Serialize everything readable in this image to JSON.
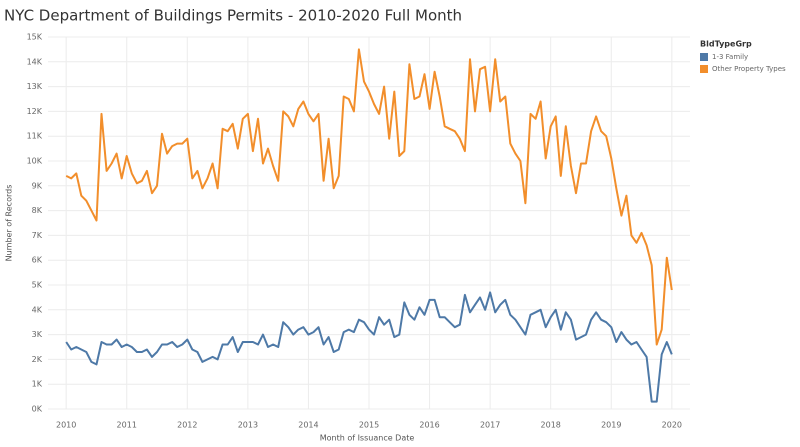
{
  "chart_data": {
    "type": "line",
    "title": "NYC Department of Buildings Permits - 2010-2020 Full Month",
    "x_label": "Month of Issuance Date",
    "y_label": "Number of Records",
    "legend_title": "BldTypeGrp",
    "legend": "right",
    "grid": true,
    "xlim": [
      2009.7,
      2020.3
    ],
    "xticks": [
      2010,
      2011,
      2012,
      2013,
      2014,
      2015,
      2016,
      2017,
      2018,
      2019,
      2020
    ],
    "ylim": [
      0,
      15000
    ],
    "yticks": [
      {
        "value": 0,
        "label": "0K"
      },
      {
        "value": 1000,
        "label": "1K"
      },
      {
        "value": 2000,
        "label": "2K"
      },
      {
        "value": 3000,
        "label": "3K"
      },
      {
        "value": 4000,
        "label": "4K"
      },
      {
        "value": 5000,
        "label": "5K"
      },
      {
        "value": 6000,
        "label": "6K"
      },
      {
        "value": 7000,
        "label": "7K"
      },
      {
        "value": 8000,
        "label": "8K"
      },
      {
        "value": 9000,
        "label": "9K"
      },
      {
        "value": 10000,
        "label": "10K"
      },
      {
        "value": 11000,
        "label": "11K"
      },
      {
        "value": 12000,
        "label": "12K"
      },
      {
        "value": 13000,
        "label": "13K"
      },
      {
        "value": 14000,
        "label": "14K"
      },
      {
        "value": 15000,
        "label": "15K"
      }
    ],
    "x": [
      2010,
      2010.083,
      2010.167,
      2010.25,
      2010.333,
      2010.417,
      2010.5,
      2010.583,
      2010.667,
      2010.75,
      2010.833,
      2010.917,
      2011,
      2011.083,
      2011.167,
      2011.25,
      2011.333,
      2011.417,
      2011.5,
      2011.583,
      2011.667,
      2011.75,
      2011.833,
      2011.917,
      2012,
      2012.083,
      2012.167,
      2012.25,
      2012.333,
      2012.417,
      2012.5,
      2012.583,
      2012.667,
      2012.75,
      2012.833,
      2012.917,
      2013,
      2013.083,
      2013.167,
      2013.25,
      2013.333,
      2013.417,
      2013.5,
      2013.583,
      2013.667,
      2013.75,
      2013.833,
      2013.917,
      2014,
      2014.083,
      2014.167,
      2014.25,
      2014.333,
      2014.417,
      2014.5,
      2014.583,
      2014.667,
      2014.75,
      2014.833,
      2014.917,
      2015,
      2015.083,
      2015.167,
      2015.25,
      2015.333,
      2015.417,
      2015.5,
      2015.583,
      2015.667,
      2015.75,
      2015.833,
      2015.917,
      2016,
      2016.083,
      2016.167,
      2016.25,
      2016.333,
      2016.417,
      2016.5,
      2016.583,
      2016.667,
      2016.75,
      2016.833,
      2016.917,
      2017,
      2017.083,
      2017.167,
      2017.25,
      2017.333,
      2017.417,
      2017.5,
      2017.583,
      2017.667,
      2017.75,
      2017.833,
      2017.917,
      2018,
      2018.083,
      2018.167,
      2018.25,
      2018.333,
      2018.417,
      2018.5,
      2018.583,
      2018.667,
      2018.75,
      2018.833,
      2018.917,
      2019,
      2019.083,
      2019.167,
      2019.25,
      2019.333,
      2019.417,
      2019.5,
      2019.583,
      2019.667,
      2019.75,
      2019.833,
      2019.917,
      2020
    ],
    "series": [
      {
        "name": "1-3 Family",
        "color": "#4e79a7",
        "values": [
          2700,
          2400,
          2500,
          2400,
          2300,
          1900,
          1800,
          2700,
          2600,
          2600,
          2800,
          2500,
          2600,
          2500,
          2300,
          2300,
          2400,
          2100,
          2300,
          2600,
          2600,
          2700,
          2500,
          2600,
          2800,
          2400,
          2300,
          1900,
          2000,
          2100,
          2000,
          2600,
          2600,
          2900,
          2300,
          2700,
          2700,
          2700,
          2600,
          3000,
          2500,
          2600,
          2500,
          3500,
          3300,
          3000,
          3200,
          3300,
          3000,
          3100,
          3300,
          2600,
          2900,
          2300,
          2400,
          3100,
          3200,
          3100,
          3600,
          3500,
          3200,
          3000,
          3700,
          3400,
          3600,
          2900,
          3000,
          4300,
          3800,
          3600,
          4100,
          3800,
          4400,
          4400,
          3700,
          3700,
          3500,
          3300,
          3400,
          4600,
          3900,
          4200,
          4500,
          4000,
          4700,
          3900,
          4200,
          4400,
          3800,
          3600,
          3300,
          3000,
          3800,
          3900,
          4000,
          3300,
          3700,
          4000,
          3200,
          3900,
          3600,
          2800,
          2900,
          3000,
          3600,
          3900,
          3600,
          3500,
          3300,
          2700,
          3100,
          2800,
          2600,
          2700,
          2400,
          2100,
          300,
          300,
          2200,
          2700,
          2200
        ]
      },
      {
        "name": "Other Property Types",
        "color": "#f28e2b",
        "values": [
          9400,
          9300,
          9500,
          8600,
          8400,
          8000,
          7600,
          11900,
          9600,
          9900,
          10300,
          9300,
          10200,
          9500,
          9100,
          9200,
          9600,
          8700,
          9000,
          11100,
          10300,
          10600,
          10700,
          10700,
          10900,
          9300,
          9600,
          8900,
          9300,
          9900,
          8900,
          11300,
          11200,
          11500,
          10500,
          11700,
          11900,
          10400,
          11700,
          9900,
          10500,
          9800,
          9200,
          12000,
          11800,
          11400,
          12100,
          12400,
          11900,
          11600,
          11900,
          9200,
          10900,
          8900,
          9400,
          12600,
          12500,
          12000,
          14500,
          13200,
          12800,
          12300,
          11900,
          13000,
          10900,
          12800,
          10200,
          10400,
          13900,
          12500,
          12600,
          13500,
          12100,
          13600,
          12600,
          11400,
          11300,
          11200,
          10900,
          10400,
          14100,
          12000,
          13700,
          13800,
          12000,
          14100,
          12400,
          12600,
          10700,
          10300,
          10000,
          8300,
          11900,
          11700,
          12400,
          10100,
          11400,
          11800,
          9400,
          11400,
          9800,
          8700,
          9900,
          9900,
          11200,
          11800,
          11200,
          11000,
          10100,
          8900,
          7800,
          8600,
          7000,
          6700,
          7100,
          6600,
          5800,
          2600,
          3200,
          6100,
          4800
        ]
      }
    ]
  }
}
